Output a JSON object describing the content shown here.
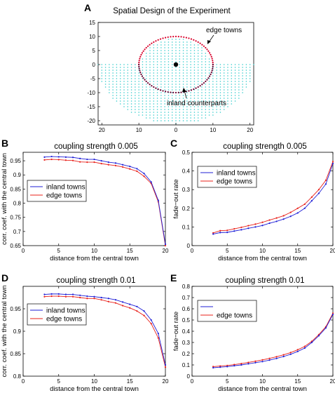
{
  "colors": {
    "inland": "#1f1fd6",
    "edge": "#e8201a",
    "dots": "#33cccc",
    "edgeDots": "#d8002a",
    "inlandDots": "#6a0030"
  },
  "chart_data": [
    {
      "id": "A",
      "panel_label": "A",
      "type": "scatter",
      "title": "Spatial Design of the Experiment",
      "xticks": [
        20,
        10,
        0,
        10,
        20
      ],
      "yticks": [
        15,
        10,
        5,
        0,
        -5,
        -10,
        -15,
        -20
      ],
      "xlim": [
        -21,
        21
      ],
      "ylim": [
        -21.5,
        15
      ],
      "description_points": {
        "upper_disk_radius": 10,
        "lower_semicircle_radius": 21,
        "center": [
          0,
          0
        ]
      },
      "annotations": {
        "edge": "edge towns",
        "inland": "inland counterparts"
      }
    },
    {
      "id": "B",
      "panel_label": "B",
      "type": "line",
      "title": "coupling strength 0.005",
      "xlabel": "distance from the central town",
      "ylabel": "corr. coef. with the central town",
      "xlim": [
        0,
        20
      ],
      "ylim": [
        0.65,
        0.98
      ],
      "xticks": [
        0,
        5,
        10,
        15,
        20
      ],
      "yticks": [
        0.65,
        0.7,
        0.75,
        0.8,
        0.85,
        0.9,
        0.95
      ],
      "ytick_labels": [
        "0.65",
        "0.7",
        "0.75",
        "0.8",
        "0.85",
        "0.9",
        "0.95"
      ],
      "legend_position": "left",
      "x": [
        3,
        4,
        5,
        6,
        7,
        8,
        9,
        10,
        11,
        12,
        13,
        14,
        15,
        16,
        17,
        18,
        19,
        20
      ],
      "series": [
        {
          "name": "inland towns",
          "values": [
            0.963,
            0.965,
            0.964,
            0.963,
            0.962,
            0.958,
            0.955,
            0.955,
            0.95,
            0.945,
            0.942,
            0.936,
            0.93,
            0.922,
            0.905,
            0.875,
            0.81,
            0.655
          ]
        },
        {
          "name": "edge towns",
          "values": [
            0.953,
            0.955,
            0.954,
            0.952,
            0.951,
            0.946,
            0.945,
            0.945,
            0.94,
            0.936,
            0.933,
            0.928,
            0.921,
            0.913,
            0.895,
            0.87,
            0.805,
            0.65
          ]
        }
      ]
    },
    {
      "id": "C",
      "panel_label": "C",
      "type": "line",
      "title": "coupling strength 0.005",
      "xlabel": "distance from the central town",
      "ylabel": "fade−out rate",
      "xlim": [
        0,
        20
      ],
      "ylim": [
        0,
        0.5
      ],
      "xticks": [
        0,
        5,
        10,
        15,
        20
      ],
      "yticks": [
        0,
        0.1,
        0.2,
        0.3,
        0.4,
        0.5
      ],
      "ytick_labels": [
        "0",
        "0.1",
        "0.2",
        "0.3",
        "0.4",
        "0.5"
      ],
      "legend_position": "top-left",
      "x": [
        3,
        4,
        5,
        6,
        7,
        8,
        9,
        10,
        11,
        12,
        13,
        14,
        15,
        16,
        17,
        18,
        19,
        20
      ],
      "series": [
        {
          "name": "inland towns",
          "values": [
            0.062,
            0.07,
            0.071,
            0.078,
            0.085,
            0.093,
            0.1,
            0.108,
            0.12,
            0.13,
            0.142,
            0.157,
            0.175,
            0.2,
            0.24,
            0.28,
            0.33,
            0.44
          ]
        },
        {
          "name": "edge towns",
          "values": [
            0.068,
            0.08,
            0.082,
            0.09,
            0.098,
            0.107,
            0.115,
            0.125,
            0.137,
            0.148,
            0.16,
            0.178,
            0.2,
            0.222,
            0.26,
            0.3,
            0.35,
            0.45
          ]
        }
      ]
    },
    {
      "id": "D",
      "panel_label": "D",
      "type": "line",
      "title": "coupling strength 0.01",
      "xlabel": "distance from the central town",
      "ylabel": "corr. coef. with the central town",
      "xlim": [
        0,
        20
      ],
      "ylim": [
        0.8,
        1.0
      ],
      "xticks": [
        0,
        5,
        10,
        15,
        20
      ],
      "yticks": [
        0.8,
        0.85,
        0.9,
        0.95
      ],
      "ytick_labels": [
        "0.8",
        "0.85",
        "0.9",
        "0.95"
      ],
      "legend_position": "left",
      "x": [
        3,
        4,
        5,
        6,
        7,
        8,
        9,
        10,
        11,
        12,
        13,
        14,
        15,
        16,
        17,
        18,
        19,
        20
      ],
      "series": [
        {
          "name": "inland towns",
          "values": [
            0.982,
            0.983,
            0.983,
            0.982,
            0.982,
            0.98,
            0.978,
            0.977,
            0.975,
            0.973,
            0.97,
            0.965,
            0.96,
            0.955,
            0.945,
            0.925,
            0.895,
            0.825
          ]
        },
        {
          "name": "edge towns",
          "values": [
            0.977,
            0.978,
            0.978,
            0.977,
            0.977,
            0.975,
            0.973,
            0.973,
            0.97,
            0.966,
            0.963,
            0.957,
            0.952,
            0.945,
            0.935,
            0.917,
            0.885,
            0.82
          ]
        }
      ]
    },
    {
      "id": "E",
      "panel_label": "E",
      "type": "line",
      "title": "coupling strength 0.01",
      "xlabel": "distance from the central town",
      "ylabel": "fade−out rate",
      "xlim": [
        0,
        20
      ],
      "ylim": [
        0,
        0.8
      ],
      "xticks": [
        0,
        5,
        10,
        15,
        20
      ],
      "yticks": [
        0,
        0.1,
        0.2,
        0.3,
        0.4,
        0.5,
        0.6,
        0.7,
        0.8
      ],
      "ytick_labels": [
        "0",
        "0.1",
        "0.2",
        "0.3",
        "0.4",
        "0.5",
        "0.6",
        "0.7",
        "0.8"
      ],
      "legend_position": "top-left",
      "x": [
        3,
        4,
        5,
        6,
        7,
        8,
        9,
        10,
        11,
        12,
        13,
        14,
        15,
        16,
        17,
        18,
        19,
        20
      ],
      "series": [
        {
          "name": "",
          "values": [
            0.075,
            0.08,
            0.085,
            0.093,
            0.1,
            0.11,
            0.12,
            0.13,
            0.143,
            0.158,
            0.175,
            0.195,
            0.22,
            0.25,
            0.3,
            0.36,
            0.43,
            0.55
          ]
        },
        {
          "name": "edge towns",
          "values": [
            0.085,
            0.09,
            0.095,
            0.103,
            0.112,
            0.122,
            0.133,
            0.145,
            0.158,
            0.173,
            0.19,
            0.21,
            0.235,
            0.265,
            0.31,
            0.37,
            0.44,
            0.56
          ]
        }
      ]
    }
  ]
}
